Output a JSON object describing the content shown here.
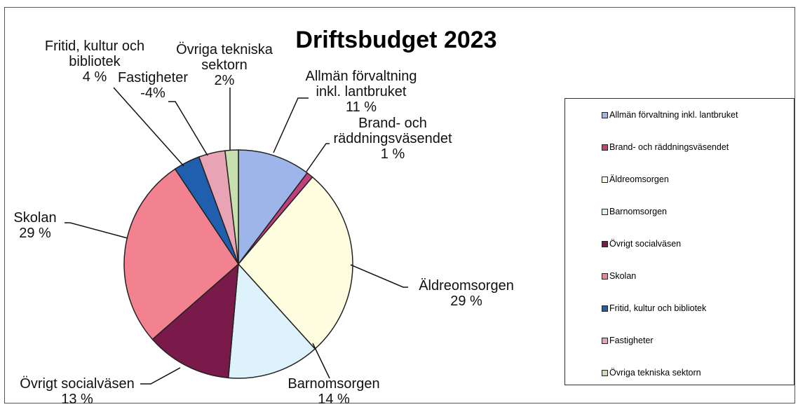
{
  "chart_data": {
    "type": "pie",
    "title": "Driftsbudget 2023",
    "categories": [
      "Allmän förvaltning inkl. lantbruket",
      "Brand- och räddningsväsendet",
      "Äldreomsorgen",
      "Barnomsorgen",
      "Övrigt socialväsen",
      "Skolan",
      "Fritid, kultur och bibliotek",
      "Fastigheter",
      "Övriga tekniska sektorn"
    ],
    "values": [
      11,
      1,
      29,
      14,
      13,
      29,
      4,
      -4,
      2
    ],
    "value_labels": [
      "11 %",
      "1 %",
      "29 %",
      "14 %",
      "13 %",
      "29 %",
      "4 %",
      "-4%",
      "2%"
    ],
    "colors": [
      "#9db5e8",
      "#c0407a",
      "#fffde0",
      "#ddf2fb",
      "#7a1a4a",
      "#f2828f",
      "#1f5fae",
      "#e8a4b4",
      "#c8dfb0"
    ],
    "legend": "right"
  }
}
